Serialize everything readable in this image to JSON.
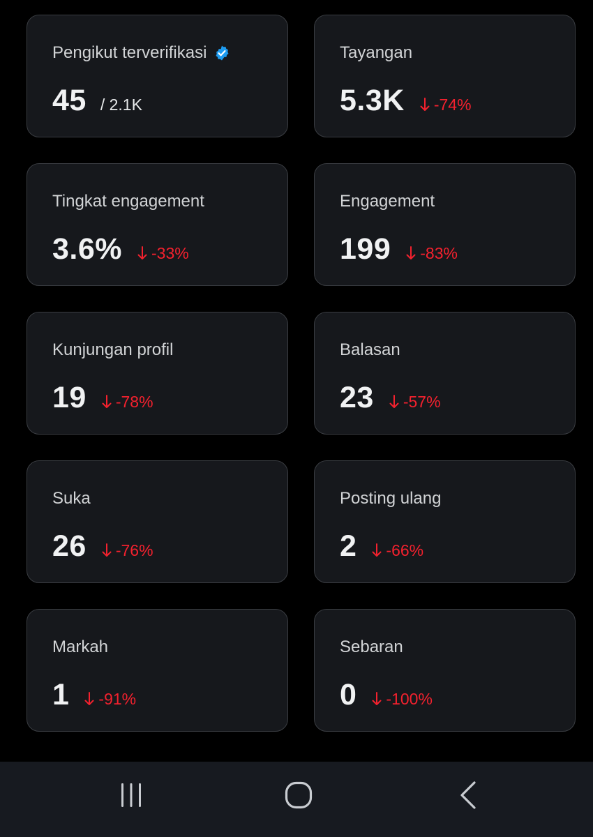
{
  "stats": [
    {
      "label": "Pengikut terverifikasi",
      "value": "45",
      "total": "/ 2.1K",
      "change": "",
      "verified": true
    },
    {
      "label": "Tayangan",
      "value": "5.3K",
      "total": "",
      "change": "-74%",
      "verified": false
    },
    {
      "label": "Tingkat engagement",
      "value": "3.6%",
      "total": "",
      "change": "-33%",
      "verified": false
    },
    {
      "label": "Engagement",
      "value": "199",
      "total": "",
      "change": "-83%",
      "verified": false
    },
    {
      "label": "Kunjungan profil",
      "value": "19",
      "total": "",
      "change": "-78%",
      "verified": false
    },
    {
      "label": "Balasan",
      "value": "23",
      "total": "",
      "change": "-57%",
      "verified": false
    },
    {
      "label": "Suka",
      "value": "26",
      "total": "",
      "change": "-76%",
      "verified": false
    },
    {
      "label": "Posting ulang",
      "value": "2",
      "total": "",
      "change": "-66%",
      "verified": false
    },
    {
      "label": "Markah",
      "value": "1",
      "total": "",
      "change": "-91%",
      "verified": false
    },
    {
      "label": "Sebaran",
      "value": "0",
      "total": "",
      "change": "-100%",
      "verified": false
    }
  ],
  "colors": {
    "background": "#000000",
    "card": "#16181c",
    "card_border": "#3a3d42",
    "negative": "#f4212e",
    "verified": "#1d9bf0",
    "navbar": "#171a20"
  },
  "navbar": {
    "buttons": [
      {
        "icon": "recent-apps-icon"
      },
      {
        "icon": "home-icon"
      },
      {
        "icon": "back-icon"
      }
    ]
  }
}
